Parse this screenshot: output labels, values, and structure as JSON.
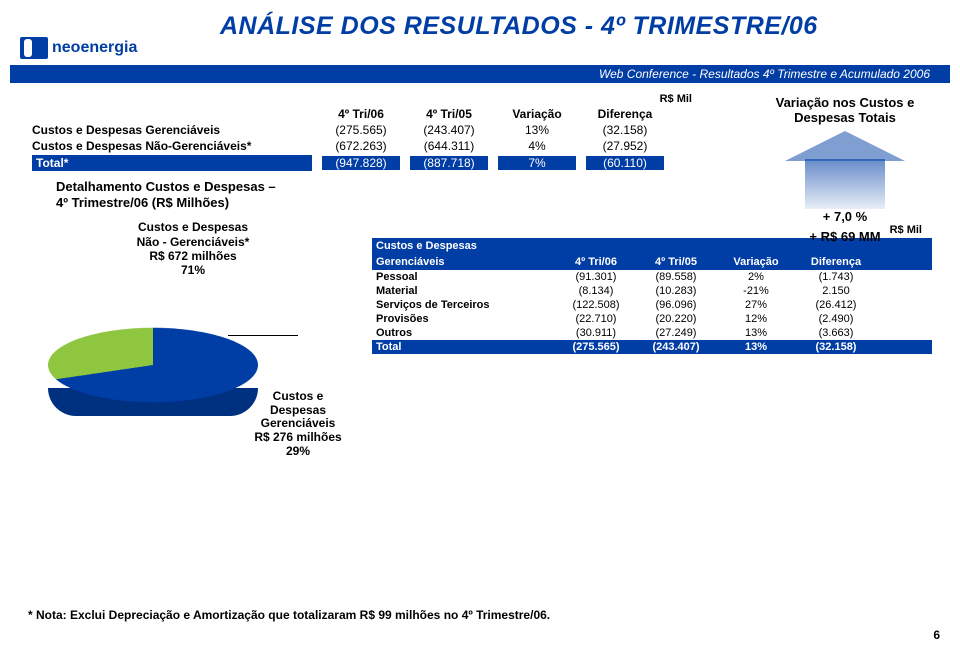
{
  "header": {
    "title": "ANÁLISE DOS RESULTADOS - 4º TRIMESTRE/06",
    "logo_text": "neoenergia",
    "subtitle": "Web Conference - Resultados 4º Trimestre e Acumulado 2006",
    "subtitle_bg": "#003DA5",
    "title_color": "#003DA5"
  },
  "table1": {
    "rs_mil": "R$ Mil",
    "cols": [
      "",
      "4º Tri/06",
      "4º Tri/05",
      "Variação",
      "Diferença"
    ],
    "rows": [
      {
        "label": "Custos e Despesas Gerenciáveis",
        "c1": "(275.565)",
        "c2": "(243.407)",
        "c3": "13%",
        "c4": "(32.158)"
      },
      {
        "label": "Custos e Despesas Não-Gerenciáveis*",
        "c1": "(672.263)",
        "c2": "(644.311)",
        "c3": "4%",
        "c4": "(27.952)"
      }
    ],
    "total": {
      "label": "Total*",
      "c1": "(947.828)",
      "c2": "(887.718)",
      "c3": "7%",
      "c4": "(60.110)"
    }
  },
  "arrow": {
    "caption": "Variação nos Custos e Despesas Totais",
    "val1": "+ 7,0 %",
    "val2": "+ R$ 69 MM",
    "color_from": "#003DA5"
  },
  "detail_title_l1": "Detalhamento Custos e Despesas –",
  "detail_title_l2": "4º Trimestre/06 (R$ Milhões)",
  "pie": {
    "type": "pie",
    "slices": [
      {
        "label": "Custos e Despesas Não - Gerenciáveis* R$ 672 milhões 71%",
        "value": 71,
        "color": "#003DA5"
      },
      {
        "label": "Custos e Despesas Gerenciáveis R$ 276 milhões 29%",
        "value": 29,
        "color": "#8EC63F"
      }
    ],
    "label1_l1": "Custos e Despesas",
    "label1_l2": "Não - Gerenciáveis*",
    "label1_l3": "R$ 672 milhões",
    "label1_l4": "71%",
    "label2_l1": "Custos e",
    "label2_l2": "Despesas",
    "label2_l3": "Gerenciáveis",
    "label2_l4": "R$ 276 milhões",
    "label2_l5": "29%"
  },
  "table2": {
    "rs_mil": "R$ Mil",
    "head_label_l1": "Custos e Despesas",
    "head_label_l2": "Gerenciáveis",
    "cols": [
      "4º Tri/06",
      "4º Tri/05",
      "Variação",
      "Diferença"
    ],
    "rows": [
      {
        "label": "Pessoal",
        "c1": "(91.301)",
        "c2": "(89.558)",
        "c3": "2%",
        "c4": "(1.743)"
      },
      {
        "label": "Material",
        "c1": "(8.134)",
        "c2": "(10.283)",
        "c3": "-21%",
        "c4": "2.150"
      },
      {
        "label": "Serviços de Terceiros",
        "c1": "(122.508)",
        "c2": "(96.096)",
        "c3": "27%",
        "c4": "(26.412)"
      },
      {
        "label": "Provisões",
        "c1": "(22.710)",
        "c2": "(20.220)",
        "c3": "12%",
        "c4": "(2.490)"
      },
      {
        "label": "Outros",
        "c1": "(30.911)",
        "c2": "(27.249)",
        "c3": "13%",
        "c4": "(3.663)"
      }
    ],
    "total": {
      "label": "Total",
      "c1": "(275.565)",
      "c2": "(243.407)",
      "c3": "13%",
      "c4": "(32.158)"
    }
  },
  "footnote": "* Nota: Exclui Depreciação e Amortização que totalizaram R$ 99 milhões no 4º Trimestre/06.",
  "page_num": "6",
  "colors": {
    "brand": "#003DA5",
    "green": "#8EC63F",
    "text": "#000000",
    "bg": "#ffffff"
  }
}
